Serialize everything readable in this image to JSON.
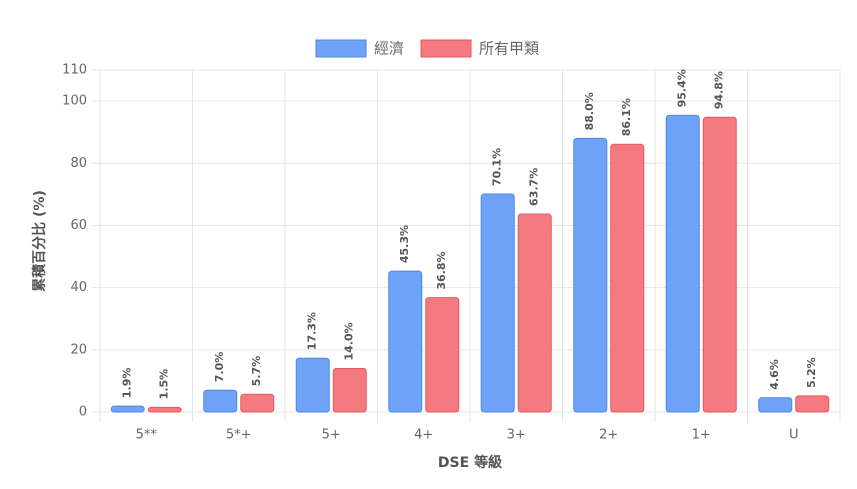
{
  "chart_data": {
    "type": "bar",
    "categories": [
      "5**",
      "5*+",
      "5+",
      "4+",
      "3+",
      "2+",
      "1+",
      "U"
    ],
    "series": [
      {
        "name": "經濟",
        "color": "#6fa3f7",
        "border": "#4b87ea",
        "values": [
          1.9,
          7.0,
          17.3,
          45.3,
          70.1,
          88.0,
          95.4,
          4.6
        ],
        "value_labels": [
          "1.9%",
          "7.0%",
          "17.3%",
          "45.3%",
          "70.1%",
          "88.0%",
          "95.4%",
          "4.6%"
        ]
      },
      {
        "name": "所有甲類",
        "color": "#f47a80",
        "border": "#e35862",
        "values": [
          1.5,
          5.7,
          14.0,
          36.8,
          63.7,
          86.1,
          94.8,
          5.2
        ],
        "value_labels": [
          "1.5%",
          "5.7%",
          "14.0%",
          "36.8%",
          "63.7%",
          "86.1%",
          "94.8%",
          "5.2%"
        ]
      }
    ],
    "ylim": [
      0,
      110
    ],
    "yticks": [
      0,
      20,
      40,
      60,
      80,
      100,
      110
    ],
    "ylabel": "累積百分比 (%)",
    "xlabel": "DSE 等級",
    "grid": true,
    "legend": "top"
  }
}
